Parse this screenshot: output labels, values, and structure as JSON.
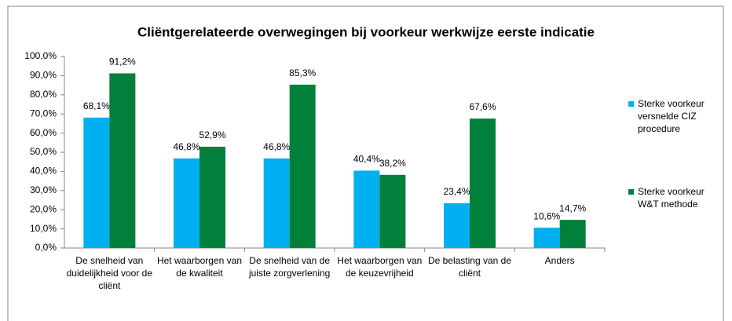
{
  "chart_data": {
    "type": "bar",
    "title": "Cliëntgerelateerde overwegingen bij voorkeur werkwijze eerste indicatie",
    "categories": [
      "De snelheid van duidelijkheid voor de cliënt",
      "Het waarborgen van de kwaliteit",
      "De snelheid van de juiste zorgverlening",
      "Het waarborgen van de keuzevrijheid",
      "De belasting van de cliënt",
      "Anders"
    ],
    "series": [
      {
        "name": "Sterke voorkeur versnelde CIZ procedure",
        "color": "#00b0f0",
        "values": [
          68.1,
          46.8,
          46.8,
          40.4,
          23.4,
          10.6
        ],
        "value_labels": [
          "68,1%",
          "46,8%",
          "46,8%",
          "40,4%",
          "23,4%",
          "10,6%"
        ]
      },
      {
        "name": "Sterke voorkeur W&T methode",
        "color": "#00803a",
        "values": [
          91.2,
          52.9,
          85.3,
          38.2,
          67.6,
          14.7
        ],
        "value_labels": [
          "91,2%",
          "52,9%",
          "85,3%",
          "38,2%",
          "67,6%",
          "14,7%"
        ]
      }
    ],
    "ylim": [
      0,
      100
    ],
    "yticks": [
      {
        "value": 0,
        "label": "0,0%"
      },
      {
        "value": 10,
        "label": "10,0%"
      },
      {
        "value": 20,
        "label": "20,0%"
      },
      {
        "value": 30,
        "label": "30,0%"
      },
      {
        "value": 40,
        "label": "40,0%"
      },
      {
        "value": 50,
        "label": "50,0%"
      },
      {
        "value": 60,
        "label": "60,0%"
      },
      {
        "value": 70,
        "label": "70,0%"
      },
      {
        "value": 80,
        "label": "80,0%"
      },
      {
        "value": 90,
        "label": "90,0%"
      },
      {
        "value": 100,
        "label": "100,0%"
      }
    ],
    "legend": "right"
  }
}
